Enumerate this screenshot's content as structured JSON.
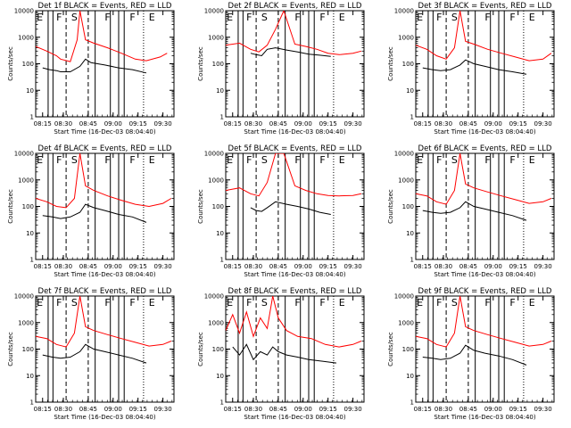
{
  "figure": {
    "xtick_labels": [
      "08:15",
      "08:30",
      "08:45",
      "09:00",
      "09:15",
      "09:30"
    ],
    "ytick_labels": [
      "1",
      "10",
      "100",
      "1000",
      "10000"
    ],
    "ylabel": "Counts/sec",
    "xlabel": "Start Time (16-Dec-03 08:04:40)",
    "colors": {
      "events": "#000000",
      "lld": "#ff0000",
      "axes": "#000000"
    }
  },
  "chart_data": [
    {
      "type": "line",
      "title": "Det 1f BLACK = Events, RED = LLD",
      "xlabel": "Start Time (16-Dec-03 08:04:40)",
      "ylabel": "Counts/sec",
      "xlim": [
        0,
        100
      ],
      "ylim": [
        1,
        10000
      ],
      "yscale": "log",
      "flags": [
        "E",
        "F",
        "S",
        "F",
        "F",
        "E"
      ],
      "series": [
        {
          "name": "Events",
          "color": "#000000",
          "x": [
            5,
            10,
            15,
            18,
            25,
            32,
            36,
            40,
            50,
            60,
            70,
            80
          ],
          "y": [
            70,
            60,
            55,
            50,
            50,
            80,
            150,
            110,
            90,
            70,
            60,
            45
          ]
        },
        {
          "name": "LLD",
          "color": "#ff0000",
          "x": [
            0,
            8,
            15,
            18,
            25,
            30,
            32,
            36,
            42,
            52,
            62,
            72,
            80,
            90,
            95
          ],
          "y": [
            450,
            300,
            200,
            150,
            120,
            800,
            10000,
            800,
            600,
            400,
            250,
            150,
            130,
            180,
            250
          ]
        }
      ]
    },
    {
      "type": "line",
      "title": "Det 2f BLACK = Events, RED = LLD",
      "xlabel": "Start Time (16-Dec-03 08:04:40)",
      "ylabel": "Counts/sec",
      "xlim": [
        0,
        100
      ],
      "ylim": [
        1,
        10000
      ],
      "yscale": "log",
      "flags": [
        "E",
        "F",
        "S",
        "F",
        "F",
        "E"
      ],
      "series": [
        {
          "name": "Events",
          "color": "#000000",
          "x": [
            18,
            22,
            26,
            30,
            36,
            44,
            52,
            60,
            68,
            76
          ],
          "y": [
            250,
            220,
            200,
            350,
            400,
            330,
            280,
            230,
            210,
            190
          ]
        },
        {
          "name": "LLD",
          "color": "#ff0000",
          "x": [
            0,
            10,
            18,
            24,
            30,
            36,
            42,
            50,
            58,
            66,
            74,
            82,
            92,
            98
          ],
          "y": [
            500,
            600,
            350,
            280,
            500,
            2000,
            10000,
            550,
            450,
            350,
            250,
            220,
            250,
            300
          ]
        }
      ]
    },
    {
      "type": "line",
      "title": "Det 3f BLACK = Events, RED = LLD",
      "xlabel": "Start Time (16-Dec-03 08:04:40)",
      "ylabel": "Counts/sec",
      "xlim": [
        0,
        100
      ],
      "ylim": [
        1,
        10000
      ],
      "yscale": "log",
      "flags": [
        "E",
        "F",
        "S",
        "F",
        "F",
        "E"
      ],
      "series": [
        {
          "name": "Events",
          "color": "#000000",
          "x": [
            5,
            12,
            18,
            25,
            32,
            36,
            42,
            50,
            60,
            70,
            80
          ],
          "y": [
            70,
            60,
            55,
            60,
            90,
            140,
            100,
            80,
            60,
            50,
            40
          ]
        },
        {
          "name": "LLD",
          "color": "#ff0000",
          "x": [
            0,
            8,
            15,
            22,
            28,
            32,
            36,
            42,
            52,
            62,
            72,
            82,
            92,
            98
          ],
          "y": [
            500,
            350,
            200,
            150,
            400,
            10000,
            700,
            550,
            350,
            250,
            180,
            130,
            150,
            250
          ]
        }
      ]
    },
    {
      "type": "line",
      "title": "Det 4f BLACK = Events, RED = LLD",
      "xlabel": "Start Time (16-Dec-03 08:04:40)",
      "ylabel": "Counts/sec",
      "xlim": [
        0,
        100
      ],
      "ylim": [
        1,
        10000
      ],
      "yscale": "log",
      "flags": [
        "E",
        "F",
        "S",
        "F",
        "F",
        "E"
      ],
      "series": [
        {
          "name": "Events",
          "color": "#000000",
          "x": [
            5,
            12,
            18,
            25,
            32,
            36,
            42,
            50,
            60,
            70,
            80
          ],
          "y": [
            45,
            40,
            35,
            40,
            60,
            120,
            90,
            70,
            50,
            40,
            25
          ]
        },
        {
          "name": "LLD",
          "color": "#ff0000",
          "x": [
            0,
            8,
            15,
            22,
            28,
            32,
            36,
            42,
            52,
            62,
            72,
            82,
            92,
            98
          ],
          "y": [
            200,
            150,
            100,
            90,
            200,
            10000,
            600,
            400,
            250,
            170,
            120,
            100,
            130,
            200
          ]
        }
      ]
    },
    {
      "type": "line",
      "title": "Det 5f BLACK = Events, RED = LLD",
      "xlabel": "Start Time (16-Dec-03 08:04:40)",
      "ylabel": "Counts/sec",
      "xlim": [
        0,
        100
      ],
      "ylim": [
        1,
        10000
      ],
      "yscale": "log",
      "flags": [
        "E",
        "F",
        "S",
        "F",
        "F",
        "E"
      ],
      "series": [
        {
          "name": "Events",
          "color": "#000000",
          "x": [
            18,
            22,
            26,
            30,
            36,
            44,
            52,
            60,
            68,
            76
          ],
          "y": [
            90,
            70,
            65,
            90,
            150,
            120,
            100,
            80,
            60,
            50
          ]
        },
        {
          "name": "LLD",
          "color": "#ff0000",
          "x": [
            0,
            10,
            18,
            24,
            30,
            36,
            42,
            50,
            58,
            66,
            74,
            82,
            92,
            98
          ],
          "y": [
            400,
            500,
            300,
            250,
            800,
            10000,
            10000,
            600,
            400,
            300,
            260,
            250,
            260,
            300
          ]
        }
      ]
    },
    {
      "type": "line",
      "title": "Det 6f BLACK = Events, RED = LLD",
      "xlabel": "Start Time (16-Dec-03 08:04:40)",
      "ylabel": "Counts/sec",
      "xlim": [
        0,
        100
      ],
      "ylim": [
        1,
        10000
      ],
      "yscale": "log",
      "flags": [
        "E",
        "F",
        "S",
        "F",
        "F",
        "E"
      ],
      "series": [
        {
          "name": "Events",
          "color": "#000000",
          "x": [
            5,
            12,
            18,
            25,
            32,
            36,
            42,
            50,
            60,
            70,
            80
          ],
          "y": [
            70,
            60,
            55,
            60,
            90,
            150,
            100,
            80,
            60,
            45,
            30
          ]
        },
        {
          "name": "LLD",
          "color": "#ff0000",
          "x": [
            0,
            8,
            15,
            22,
            28,
            32,
            36,
            42,
            52,
            62,
            72,
            82,
            92,
            98
          ],
          "y": [
            300,
            250,
            150,
            120,
            400,
            10000,
            700,
            500,
            350,
            250,
            180,
            130,
            150,
            200
          ]
        }
      ]
    },
    {
      "type": "line",
      "title": "Det 7f BLACK = Events, RED = LLD",
      "xlabel": "Start Time (16-Dec-03 08:04:40)",
      "ylabel": "Counts/sec",
      "xlim": [
        0,
        100
      ],
      "ylim": [
        1,
        10000
      ],
      "yscale": "log",
      "flags": [
        "E",
        "F",
        "S",
        "F",
        "F",
        "E"
      ],
      "series": [
        {
          "name": "Events",
          "color": "#000000",
          "x": [
            5,
            12,
            18,
            25,
            32,
            36,
            42,
            50,
            60,
            70,
            80
          ],
          "y": [
            60,
            50,
            45,
            50,
            80,
            150,
            100,
            80,
            60,
            45,
            30
          ]
        },
        {
          "name": "LLD",
          "color": "#ff0000",
          "x": [
            0,
            8,
            15,
            22,
            28,
            32,
            36,
            42,
            52,
            62,
            72,
            82,
            92,
            98
          ],
          "y": [
            300,
            250,
            150,
            120,
            400,
            10000,
            700,
            500,
            350,
            250,
            180,
            130,
            150,
            200
          ]
        }
      ]
    },
    {
      "type": "line",
      "title": "Det 8f BLACK = Events, RED = LLD",
      "xlabel": "Start Time (16-Dec-03 08:04:40)",
      "ylabel": "Counts/sec",
      "xlim": [
        0,
        100
      ],
      "ylim": [
        1,
        10000
      ],
      "yscale": "log",
      "flags": [
        "E",
        "F",
        "S",
        "F",
        "F",
        "E"
      ],
      "series": [
        {
          "name": "Events",
          "color": "#000000",
          "x": [
            5,
            10,
            15,
            20,
            25,
            30,
            34,
            38,
            44,
            52,
            60,
            70,
            80
          ],
          "y": [
            120,
            60,
            150,
            40,
            80,
            60,
            120,
            80,
            60,
            50,
            40,
            35,
            30
          ]
        },
        {
          "name": "LLD",
          "color": "#ff0000",
          "x": [
            0,
            5,
            10,
            15,
            20,
            25,
            30,
            34,
            38,
            44,
            52,
            62,
            72,
            82,
            92,
            98
          ],
          "y": [
            500,
            2000,
            400,
            2500,
            300,
            1500,
            600,
            10000,
            1500,
            500,
            300,
            250,
            150,
            120,
            150,
            200
          ]
        }
      ]
    },
    {
      "type": "line",
      "title": "Det 9f BLACK = Events, RED = LLD",
      "xlabel": "Start Time (16-Dec-03 08:04:40)",
      "ylabel": "Counts/sec",
      "xlim": [
        0,
        100
      ],
      "ylim": [
        1,
        10000
      ],
      "yscale": "log",
      "flags": [
        "E",
        "F",
        "S",
        "F",
        "F",
        "E"
      ],
      "series": [
        {
          "name": "Events",
          "color": "#000000",
          "x": [
            5,
            12,
            18,
            25,
            32,
            36,
            42,
            50,
            60,
            70,
            80
          ],
          "y": [
            50,
            45,
            40,
            45,
            70,
            140,
            90,
            70,
            55,
            40,
            25
          ]
        },
        {
          "name": "LLD",
          "color": "#ff0000",
          "x": [
            0,
            8,
            15,
            22,
            28,
            32,
            36,
            42,
            52,
            62,
            72,
            82,
            92,
            98
          ],
          "y": [
            300,
            250,
            150,
            120,
            400,
            10000,
            700,
            500,
            350,
            250,
            180,
            130,
            150,
            200
          ]
        }
      ]
    }
  ]
}
